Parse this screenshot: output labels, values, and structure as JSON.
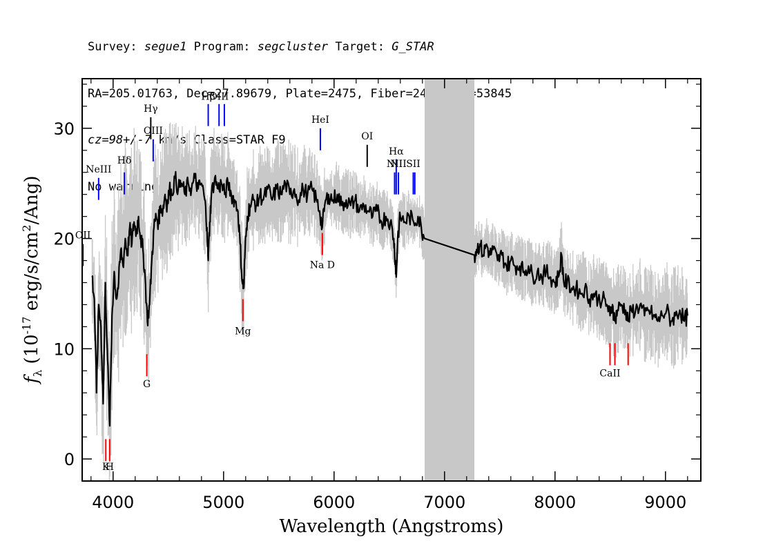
{
  "header": {
    "survey_label": "Survey:",
    "survey": "segue1",
    "program_label": "Program:",
    "program": "segcluster",
    "target_label": "Target:",
    "target": "G_STAR",
    "line2": "RA=205.01763, Dec=27.89679, Plate=2475, Fiber=249, MJD=53845",
    "cz": "cz=98+/-7",
    "cz_rest": " km/s Class=STAR F9",
    "line4": "No warnings."
  },
  "chart_data": {
    "type": "line",
    "xlabel": "Wavelength (Angstroms)",
    "ylabel": "f_λ (10^-17 erg/s/cm^2/Ang)",
    "xlim": [
      3720,
      9320
    ],
    "ylim": [
      -2,
      34.5
    ],
    "xticks": [
      4000,
      5000,
      6000,
      7000,
      8000,
      9000
    ],
    "yticks": [
      0,
      10,
      20,
      30
    ],
    "masked_region": [
      6820,
      7270
    ],
    "series": [
      {
        "style": "smoothed",
        "color": "#000000",
        "points": [
          [
            3810,
            16.5
          ],
          [
            3830,
            14.5
          ],
          [
            3850,
            6.0
          ],
          [
            3870,
            14.0
          ],
          [
            3890,
            12.0
          ],
          [
            3910,
            5.0
          ],
          [
            3930,
            16.0
          ],
          [
            3950,
            9.0
          ],
          [
            3970,
            3.0
          ],
          [
            3990,
            13.0
          ],
          [
            4010,
            17.0
          ],
          [
            4030,
            14.5
          ],
          [
            4050,
            16.0
          ],
          [
            4070,
            19.0
          ],
          [
            4090,
            17.5
          ],
          [
            4110,
            20.0
          ],
          [
            4130,
            18.5
          ],
          [
            4150,
            21.0
          ],
          [
            4170,
            19.5
          ],
          [
            4190,
            21.5
          ],
          [
            4210,
            20.5
          ],
          [
            4230,
            22.0
          ],
          [
            4250,
            20.0
          ],
          [
            4270,
            19.0
          ],
          [
            4290,
            16.5
          ],
          [
            4310,
            12.5
          ],
          [
            4330,
            14.0
          ],
          [
            4350,
            18.0
          ],
          [
            4370,
            21.0
          ],
          [
            4390,
            22.0
          ],
          [
            4410,
            21.5
          ],
          [
            4430,
            23.0
          ],
          [
            4450,
            22.5
          ],
          [
            4470,
            24.0
          ],
          [
            4490,
            23.0
          ],
          [
            4510,
            24.5
          ],
          [
            4530,
            24.0
          ],
          [
            4560,
            25.5
          ],
          [
            4590,
            24.5
          ],
          [
            4620,
            25.0
          ],
          [
            4650,
            24.0
          ],
          [
            4680,
            25.0
          ],
          [
            4710,
            24.5
          ],
          [
            4740,
            25.5
          ],
          [
            4770,
            24.5
          ],
          [
            4800,
            25.0
          ],
          [
            4830,
            23.5
          ],
          [
            4850,
            21.0
          ],
          [
            4861,
            18.0
          ],
          [
            4875,
            21.5
          ],
          [
            4890,
            24.0
          ],
          [
            4920,
            25.5
          ],
          [
            4950,
            24.5
          ],
          [
            4980,
            25.0
          ],
          [
            5010,
            24.0
          ],
          [
            5040,
            25.0
          ],
          [
            5070,
            24.0
          ],
          [
            5100,
            23.5
          ],
          [
            5130,
            22.5
          ],
          [
            5150,
            19.5
          ],
          [
            5170,
            16.0
          ],
          [
            5183,
            15.5
          ],
          [
            5195,
            19.0
          ],
          [
            5215,
            22.0
          ],
          [
            5240,
            23.0
          ],
          [
            5270,
            23.5
          ],
          [
            5300,
            23.0
          ],
          [
            5330,
            24.0
          ],
          [
            5360,
            23.5
          ],
          [
            5400,
            24.5
          ],
          [
            5440,
            23.5
          ],
          [
            5480,
            24.5
          ],
          [
            5520,
            24.0
          ],
          [
            5560,
            25.0
          ],
          [
            5600,
            24.0
          ],
          [
            5640,
            24.5
          ],
          [
            5680,
            23.5
          ],
          [
            5720,
            24.5
          ],
          [
            5760,
            24.0
          ],
          [
            5800,
            24.5
          ],
          [
            5840,
            23.5
          ],
          [
            5870,
            22.5
          ],
          [
            5893,
            21.0
          ],
          [
            5915,
            23.0
          ],
          [
            5950,
            24.0
          ],
          [
            5990,
            23.5
          ],
          [
            6030,
            24.0
          ],
          [
            6070,
            23.0
          ],
          [
            6110,
            23.5
          ],
          [
            6150,
            23.0
          ],
          [
            6190,
            23.5
          ],
          [
            6230,
            22.5
          ],
          [
            6270,
            23.0
          ],
          [
            6310,
            22.5
          ],
          [
            6350,
            22.0
          ],
          [
            6390,
            22.5
          ],
          [
            6430,
            21.5
          ],
          [
            6470,
            22.0
          ],
          [
            6510,
            21.5
          ],
          [
            6540,
            20.0
          ],
          [
            6555,
            18.0
          ],
          [
            6563,
            16.5
          ],
          [
            6575,
            20.0
          ],
          [
            6600,
            22.0
          ],
          [
            6640,
            21.5
          ],
          [
            6680,
            22.0
          ],
          [
            6720,
            21.5
          ],
          [
            6760,
            22.0
          ],
          [
            6790,
            21.0
          ],
          [
            6820,
            20.0
          ],
          [
            7270,
            18.5
          ],
          [
            7290,
            19.0
          ],
          [
            7320,
            19.5
          ],
          [
            7350,
            18.5
          ],
          [
            7380,
            19.5
          ],
          [
            7410,
            18.5
          ],
          [
            7440,
            19.0
          ],
          [
            7480,
            18.0
          ],
          [
            7520,
            18.5
          ],
          [
            7560,
            17.5
          ],
          [
            7600,
            18.0
          ],
          [
            7640,
            17.5
          ],
          [
            7680,
            17.5
          ],
          [
            7720,
            17.0
          ],
          [
            7760,
            17.5
          ],
          [
            7800,
            16.5
          ],
          [
            7840,
            17.0
          ],
          [
            7880,
            16.5
          ],
          [
            7920,
            17.0
          ],
          [
            7960,
            16.5
          ],
          [
            8000,
            16.0
          ],
          [
            8030,
            16.5
          ],
          [
            8060,
            18.5
          ],
          [
            8080,
            16.0
          ],
          [
            8110,
            16.0
          ],
          [
            8150,
            15.5
          ],
          [
            8190,
            15.5
          ],
          [
            8230,
            15.0
          ],
          [
            8270,
            15.5
          ],
          [
            8310,
            14.5
          ],
          [
            8350,
            15.0
          ],
          [
            8390,
            14.5
          ],
          [
            8430,
            14.5
          ],
          [
            8470,
            14.0
          ],
          [
            8498,
            13.0
          ],
          [
            8520,
            14.0
          ],
          [
            8542,
            12.5
          ],
          [
            8565,
            13.5
          ],
          [
            8600,
            14.0
          ],
          [
            8640,
            13.5
          ],
          [
            8662,
            12.5
          ],
          [
            8690,
            13.5
          ],
          [
            8730,
            13.5
          ],
          [
            8770,
            14.0
          ],
          [
            8810,
            13.0
          ],
          [
            8850,
            13.5
          ],
          [
            8890,
            13.0
          ],
          [
            8930,
            12.5
          ],
          [
            8970,
            13.0
          ],
          [
            9010,
            13.5
          ],
          [
            9050,
            12.5
          ],
          [
            9090,
            13.0
          ],
          [
            9130,
            13.5
          ],
          [
            9170,
            12.5
          ],
          [
            9200,
            13.0
          ]
        ]
      }
    ],
    "noise_band": {
      "color": "#c8c8c8",
      "half_width": [
        [
          3810,
          3.5
        ],
        [
          4000,
          6.0
        ],
        [
          4300,
          5.0
        ],
        [
          4600,
          3.5
        ],
        [
          5000,
          3.0
        ],
        [
          5600,
          3.0
        ],
        [
          6000,
          2.0
        ],
        [
          6820,
          1.5
        ],
        [
          7270,
          1.5
        ],
        [
          8000,
          2.0
        ],
        [
          8500,
          2.5
        ],
        [
          9200,
          3.0
        ]
      ]
    },
    "emission_lines": [
      {
        "label": "NeIII",
        "x": 3869,
        "line_y": [
          23.5,
          25.5
        ],
        "label_y": 26.0,
        "color": "#0000ff"
      },
      {
        "label": "Hδ",
        "x": 4102,
        "line_y": [
          24.0,
          26.0
        ],
        "label_y": 26.8,
        "color": "#0000ff"
      },
      {
        "label": "Hγ",
        "x": 4341,
        "line_y": [
          29.0,
          31.0
        ],
        "label_y": 31.5,
        "color": "#000000"
      },
      {
        "label": "OIII",
        "x": 4363,
        "line_y": [
          27.0,
          29.0
        ],
        "label_y": 29.5,
        "color": "#0000ff"
      },
      {
        "label": "Hβ",
        "x": 4861,
        "line_y": [
          30.2,
          32.2
        ],
        "label_y": 32.6,
        "color": "#0000ff"
      },
      {
        "label": "OIII",
        "x": 4959,
        "line_y": [
          30.2,
          32.2
        ],
        "label_y": 32.6,
        "color": "#0000ff"
      },
      {
        "label": "",
        "x": 5007,
        "line_y": [
          30.2,
          32.2
        ],
        "label_y": 32.6,
        "color": "#0000ff"
      },
      {
        "label": "HeI",
        "x": 5876,
        "line_y": [
          28.0,
          30.0
        ],
        "label_y": 30.5,
        "color": "#0000ff"
      },
      {
        "label": "OI",
        "x": 6300,
        "line_y": [
          26.5,
          28.5
        ],
        "label_y": 29.0,
        "color": "#000000"
      },
      {
        "label": "NII",
        "x": 6548,
        "line_y": [
          24.0,
          26.0
        ],
        "label_y": 26.5,
        "color": "#0000ff"
      },
      {
        "label": "Hα",
        "x": 6563,
        "line_y": [
          24.0,
          27.2
        ],
        "label_y": 27.6,
        "color": "#0000ff"
      },
      {
        "label": "NII",
        "x": 6583,
        "line_y": [
          24.0,
          26.0
        ],
        "label_y": 26.5,
        "color": "#0000ff"
      },
      {
        "label": "SII",
        "x": 6717,
        "line_y": [
          24.0,
          26.0
        ],
        "label_y": 26.5,
        "color": "#0000ff"
      },
      {
        "label": "",
        "x": 6731,
        "line_y": [
          24.0,
          26.0
        ],
        "label_y": 26.5,
        "color": "#0000ff"
      },
      {
        "label": "OII",
        "x": 3727,
        "line_y": [
          17.5,
          19.5
        ],
        "label_y": 20.0,
        "color": "#000000"
      }
    ],
    "absorption_lines": [
      {
        "label": "K",
        "x": 3934,
        "line_y": [
          -0.2,
          1.8
        ],
        "label_y": -1.0,
        "color": "#ff0000"
      },
      {
        "label": "H",
        "x": 3969,
        "line_y": [
          -0.2,
          1.8
        ],
        "label_y": -1.0,
        "color": "#ff0000"
      },
      {
        "label": "G",
        "x": 4305,
        "line_y": [
          7.5,
          9.5
        ],
        "label_y": 6.5,
        "color": "#ff0000"
      },
      {
        "label": "Mg",
        "x": 5175,
        "line_y": [
          12.5,
          14.5
        ],
        "label_y": 11.3,
        "color": "#ff0000"
      },
      {
        "label": "Na D",
        "x": 5894,
        "line_y": [
          18.5,
          20.5
        ],
        "label_y": 17.3,
        "color": "#ff0000"
      },
      {
        "label": "CaII",
        "x": 8498,
        "line_y": [
          8.5,
          10.5
        ],
        "label_y": 7.5,
        "color": "#ff0000"
      },
      {
        "label": "",
        "x": 8542,
        "line_y": [
          8.5,
          10.5
        ],
        "label_y": 7.5,
        "color": "#ff0000"
      },
      {
        "label": "",
        "x": 8662,
        "line_y": [
          8.5,
          10.5
        ],
        "label_y": 7.5,
        "color": "#ff0000"
      }
    ]
  }
}
